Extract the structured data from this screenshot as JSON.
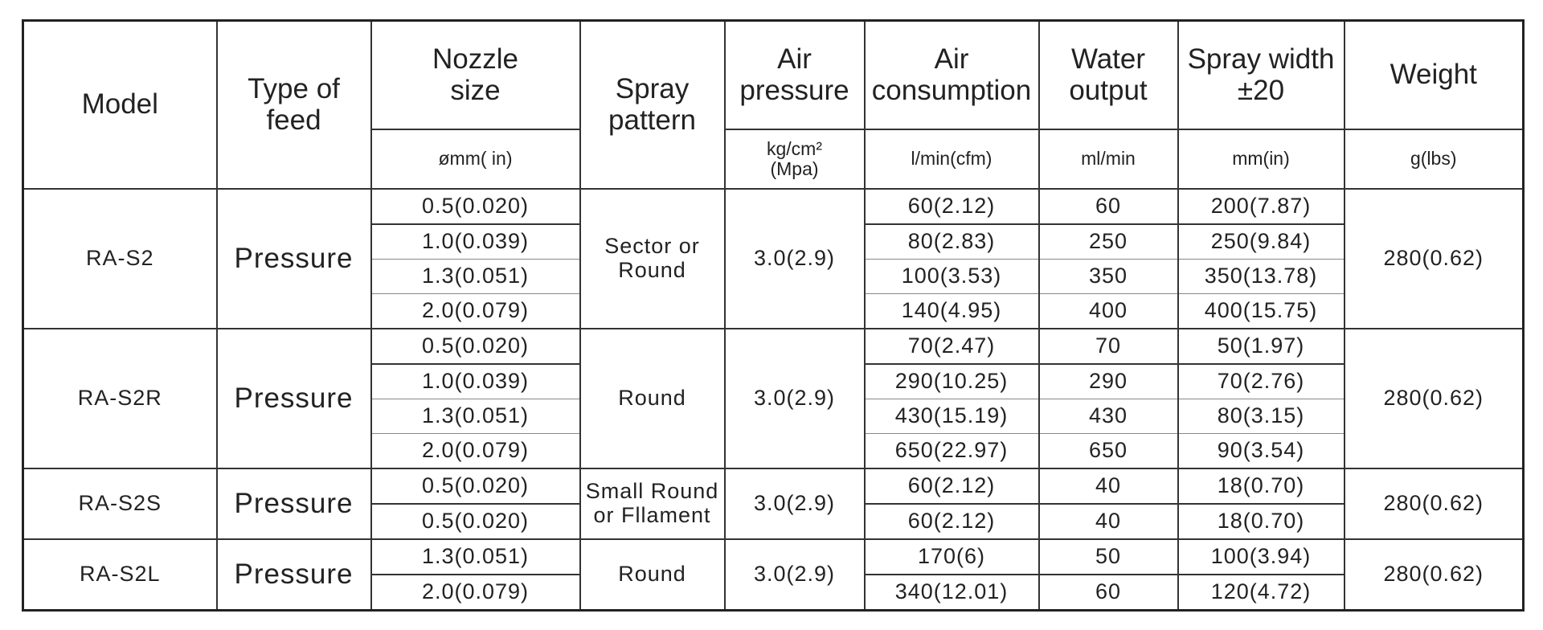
{
  "header": {
    "columns": [
      "Model",
      "Type of\nfeed",
      "Nozzle\nsize",
      "Spray\npattern",
      "Air\npressure",
      "Air\nconsumption",
      "Water\noutput",
      "Spray  width\n±20",
      "Weight"
    ],
    "units": {
      "nozzle": "ømm( in)",
      "pressure": "kg/cm²\n(Mpa)",
      "air": "l/min(cfm)",
      "water": "ml/min",
      "width": "mm(in)",
      "weight": "g(lbs)"
    }
  },
  "table": {
    "groups": [
      {
        "model": "RA-S2",
        "feed": "Pressure",
        "pattern": "Sector or\nRound",
        "pressure": "3.0(2.9)",
        "weight": "280(0.62)",
        "rows": [
          [
            "0.5(0.020)",
            "60(2.12)",
            "60",
            "200(7.87)"
          ],
          [
            "1.0(0.039)",
            "80(2.83)",
            "250",
            "250(9.84)"
          ],
          [
            "1.3(0.051)",
            "100(3.53)",
            "350",
            "350(13.78)"
          ],
          [
            "2.0(0.079)",
            "140(4.95)",
            "400",
            "400(15.75)"
          ]
        ]
      },
      {
        "model": "RA-S2R",
        "feed": "Pressure",
        "pattern": "Round",
        "pressure": "3.0(2.9)",
        "weight": "280(0.62)",
        "rows": [
          [
            "0.5(0.020)",
            "70(2.47)",
            "70",
            "50(1.97)"
          ],
          [
            "1.0(0.039)",
            "290(10.25)",
            "290",
            "70(2.76)"
          ],
          [
            "1.3(0.051)",
            "430(15.19)",
            "430",
            "80(3.15)"
          ],
          [
            "2.0(0.079)",
            "650(22.97)",
            "650",
            "90(3.54)"
          ]
        ]
      },
      {
        "model": "RA-S2S",
        "feed": "Pressure",
        "pattern": "Small Round\nor Fllament",
        "pressure": "3.0(2.9)",
        "weight": "280(0.62)",
        "rows": [
          [
            "0.5(0.020)",
            "60(2.12)",
            "40",
            "18(0.70)"
          ],
          [
            "0.5(0.020)",
            "60(2.12)",
            "40",
            "18(0.70)"
          ]
        ]
      },
      {
        "model": "RA-S2L",
        "feed": "Pressure",
        "pattern": "Round",
        "pressure": "3.0(2.9)",
        "weight": "280(0.62)",
        "rows": [
          [
            "1.3(0.051)",
            "170(6)",
            "50",
            "100(3.94)"
          ],
          [
            "2.0(0.079)",
            "340(12.01)",
            "60",
            "120(4.72)"
          ]
        ]
      }
    ]
  }
}
